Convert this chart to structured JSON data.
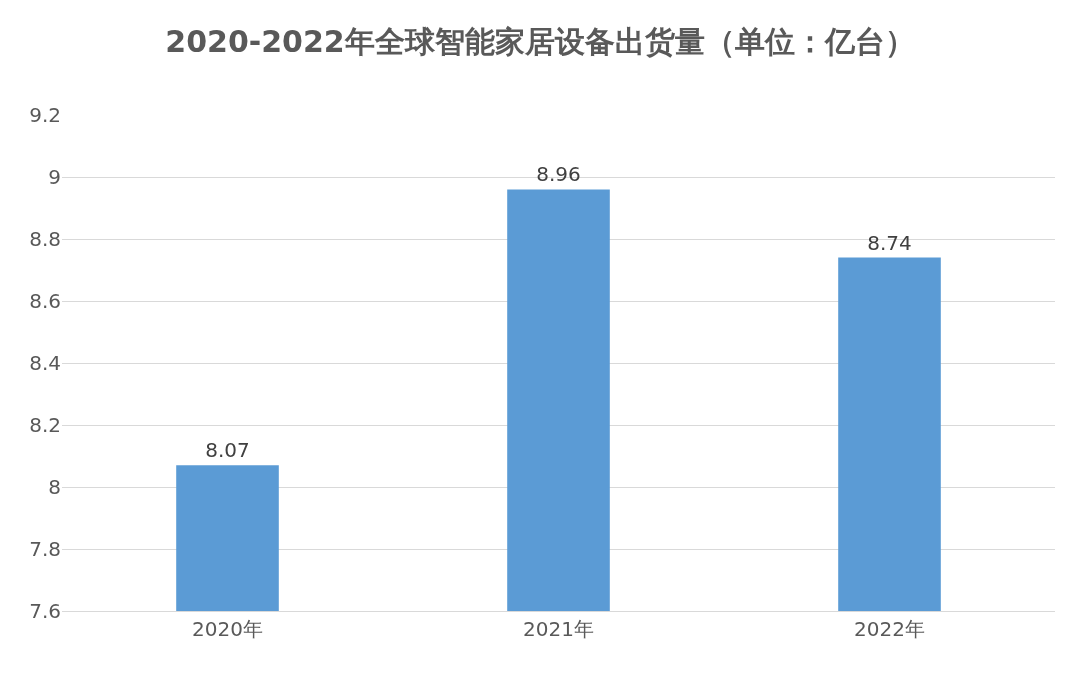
{
  "chart_data": {
    "type": "bar",
    "title": "2020-2022年全球智能家居设备出货量（单位：亿台）",
    "categories": [
      "2020年",
      "2021年",
      "2022年"
    ],
    "values": [
      8.07,
      8.96,
      8.74
    ],
    "color": "#5b9bd5",
    "ylim": [
      7.6,
      9.2
    ],
    "yticks": [
      7.6,
      7.8,
      8,
      8.2,
      8.4,
      8.6,
      8.8,
      9,
      9.2
    ],
    "grid": "y",
    "data_labels": true,
    "legend": false
  }
}
